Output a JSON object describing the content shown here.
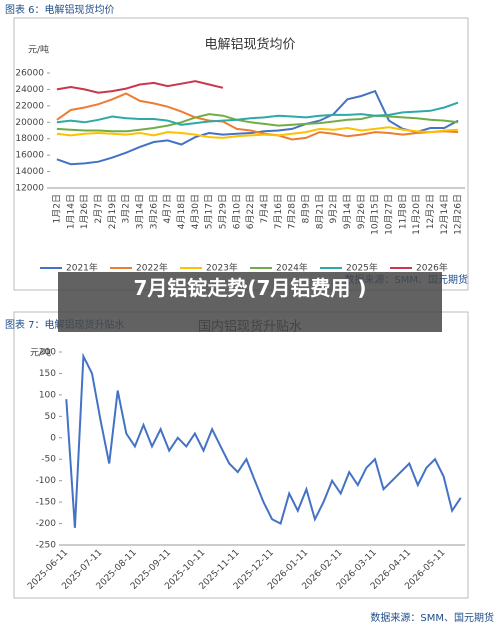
{
  "overlay_title": "7月铝锭走势(7月铝费用 )",
  "chart_data": [
    {
      "type": "line",
      "caption": "图表 6：电解铝现货均价",
      "title": "电解铝现货均价",
      "y_label": "元/吨",
      "source": "数据来源：SMM、国元期货",
      "categories": [
        "1月2日",
        "1月14日",
        "1月26日",
        "2月7日",
        "2月19日",
        "3月2日",
        "3月14日",
        "3月26日",
        "4月7日",
        "4月18日",
        "4月30日",
        "5月17日",
        "5月29日",
        "6月10日",
        "6月22日",
        "7月4日",
        "7月16日",
        "7月28日",
        "8月9日",
        "8月21日",
        "9月2日",
        "9月14日",
        "9月26日",
        "10月15日",
        "10月27日",
        "11月8日",
        "11月20日",
        "12月2日",
        "12月14日",
        "12月26日"
      ],
      "ylim": [
        12000,
        26000
      ],
      "yticks": [
        12000,
        14000,
        16000,
        18000,
        20000,
        22000,
        24000,
        26000
      ],
      "series": [
        {
          "name": "2021年",
          "color": "#4472c4",
          "values": [
            15500,
            14900,
            15000,
            15200,
            15700,
            16300,
            17000,
            17600,
            17800,
            17300,
            18200,
            18700,
            18500,
            18600,
            18700,
            18900,
            19000,
            19200,
            19800,
            20200,
            21000,
            22800,
            23200,
            23800,
            20200,
            19200,
            18800,
            19300,
            19300,
            20200
          ]
        },
        {
          "name": "2022年",
          "color": "#ed7d31",
          "values": [
            20300,
            21500,
            21800,
            22200,
            22800,
            23500,
            22600,
            22300,
            21900,
            21300,
            20600,
            20200,
            20100,
            19200,
            19000,
            18600,
            18400,
            17900,
            18100,
            18800,
            18600,
            18300,
            18500,
            18800,
            18700,
            18500,
            18700,
            18800,
            18900,
            18800
          ]
        },
        {
          "name": "2023年",
          "color": "#ffc000",
          "values": [
            18600,
            18400,
            18600,
            18700,
            18600,
            18500,
            18700,
            18400,
            18800,
            18700,
            18500,
            18200,
            18100,
            18300,
            18400,
            18500,
            18400,
            18600,
            18800,
            19200,
            19100,
            19300,
            19000,
            19200,
            19400,
            19100,
            18900,
            18800,
            19000,
            19100
          ]
        },
        {
          "name": "2024年",
          "color": "#70ad47",
          "values": [
            19200,
            19100,
            19000,
            19000,
            18900,
            18900,
            19100,
            19300,
            19600,
            20000,
            20600,
            21000,
            20800,
            20300,
            20000,
            19800,
            19600,
            19700,
            19800,
            19900,
            20100,
            20300,
            20400,
            20800,
            20700,
            20600,
            20500,
            20300,
            20200,
            20000
          ]
        },
        {
          "name": "2025年",
          "color": "#2fa8a8",
          "values": [
            20000,
            20200,
            20000,
            20300,
            20700,
            20500,
            20400,
            20400,
            20200,
            19700,
            19900,
            20100,
            20200,
            20300,
            20500,
            20600,
            20800,
            20700,
            20600,
            20800,
            20900,
            20900,
            21000,
            20800,
            20900,
            21200,
            21300,
            21400,
            21800,
            22400
          ]
        },
        {
          "name": "2026年",
          "color": "#c8374f",
          "values": [
            24000,
            24300,
            24000,
            23600,
            23800,
            24100,
            24600,
            24800,
            24400,
            24700,
            25000,
            24600,
            24200,
            null,
            null,
            null,
            null,
            null,
            null,
            null,
            null,
            null,
            null,
            null,
            null,
            null,
            null,
            null,
            null,
            null
          ]
        }
      ]
    },
    {
      "type": "line",
      "caption": "图表 7：电解铝现货升贴水",
      "title": "国内铝现货升贴水",
      "y_label": "元/吨",
      "source": "数据来源：SMM、国元期货",
      "categories": [
        "2025-06-11",
        null,
        null,
        null,
        "2025-07-11",
        null,
        null,
        null,
        "2025-08-11",
        null,
        null,
        null,
        "2025-09-11",
        null,
        null,
        null,
        "2025-10-11",
        null,
        null,
        null,
        "2025-11-11",
        null,
        null,
        null,
        "2025-12-11",
        null,
        null,
        null,
        "2026-01-11",
        null,
        null,
        null,
        "2026-02-11",
        null,
        null,
        null,
        "2026-03-11",
        null,
        null,
        null,
        "2026-04-11",
        null,
        null,
        null,
        "2026-05-11",
        null,
        null
      ],
      "ylim": [
        -250,
        200
      ],
      "yticks": [
        -250,
        -200,
        -150,
        -100,
        -50,
        0,
        50,
        100,
        150,
        200
      ],
      "series": [
        {
          "name": "升贴水",
          "color": "#4472c4",
          "values": [
            90,
            -210,
            190,
            150,
            40,
            -60,
            110,
            10,
            -20,
            30,
            -20,
            20,
            -30,
            0,
            -20,
            10,
            -30,
            20,
            -20,
            -60,
            -80,
            -50,
            -100,
            -150,
            -190,
            -200,
            -130,
            -170,
            -120,
            -190,
            -150,
            -100,
            -130,
            -80,
            -110,
            -70,
            -50,
            -120,
            -100,
            -80,
            -60,
            -110,
            -70,
            -50,
            -90,
            -170,
            -140
          ]
        }
      ]
    }
  ]
}
